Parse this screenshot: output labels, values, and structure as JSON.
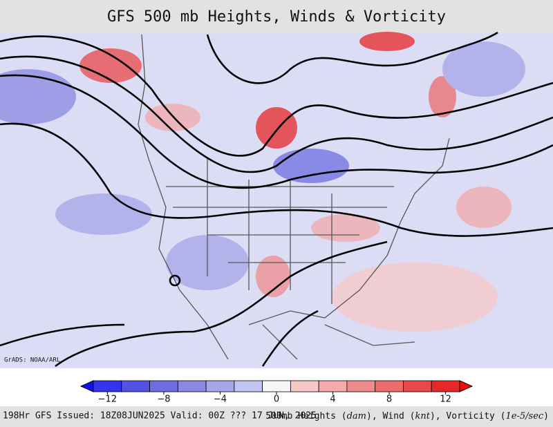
{
  "header": {
    "title": "GFS 500 mb Heights, Winds & Vorticity"
  },
  "map": {
    "credit": "GrADS: NOAA/ARL"
  },
  "colorbar": {
    "levels": [
      -13,
      -11,
      -9,
      -7,
      -5,
      -3,
      -1,
      1,
      3,
      5,
      7,
      9,
      11,
      13
    ],
    "colors": [
      "#1010f0",
      "#3434ec",
      "#5252e6",
      "#6e6ee2",
      "#8a8ae2",
      "#a6a6ea",
      "#c4c4f2",
      "#f6f6fa",
      "#f6c8c8",
      "#f2aaaa",
      "#ee8c8c",
      "#ea6c6c",
      "#e84848",
      "#e62828",
      "#f00c0c"
    ],
    "ticks": [
      {
        "value": -12,
        "label": "−12"
      },
      {
        "value": -8,
        "label": "−8"
      },
      {
        "value": -4,
        "label": "−4"
      },
      0,
      4,
      8,
      12
    ]
  },
  "footer": {
    "left": "198Hr GFS Issued: 18Z08JUN2025 Valid: 00Z ??? 17 JUN, 2025",
    "right": [
      "500mb Heights (",
      "dam",
      "), Wind (",
      "knt",
      "), Vorticity (",
      "1e-5/sec",
      ")"
    ]
  }
}
